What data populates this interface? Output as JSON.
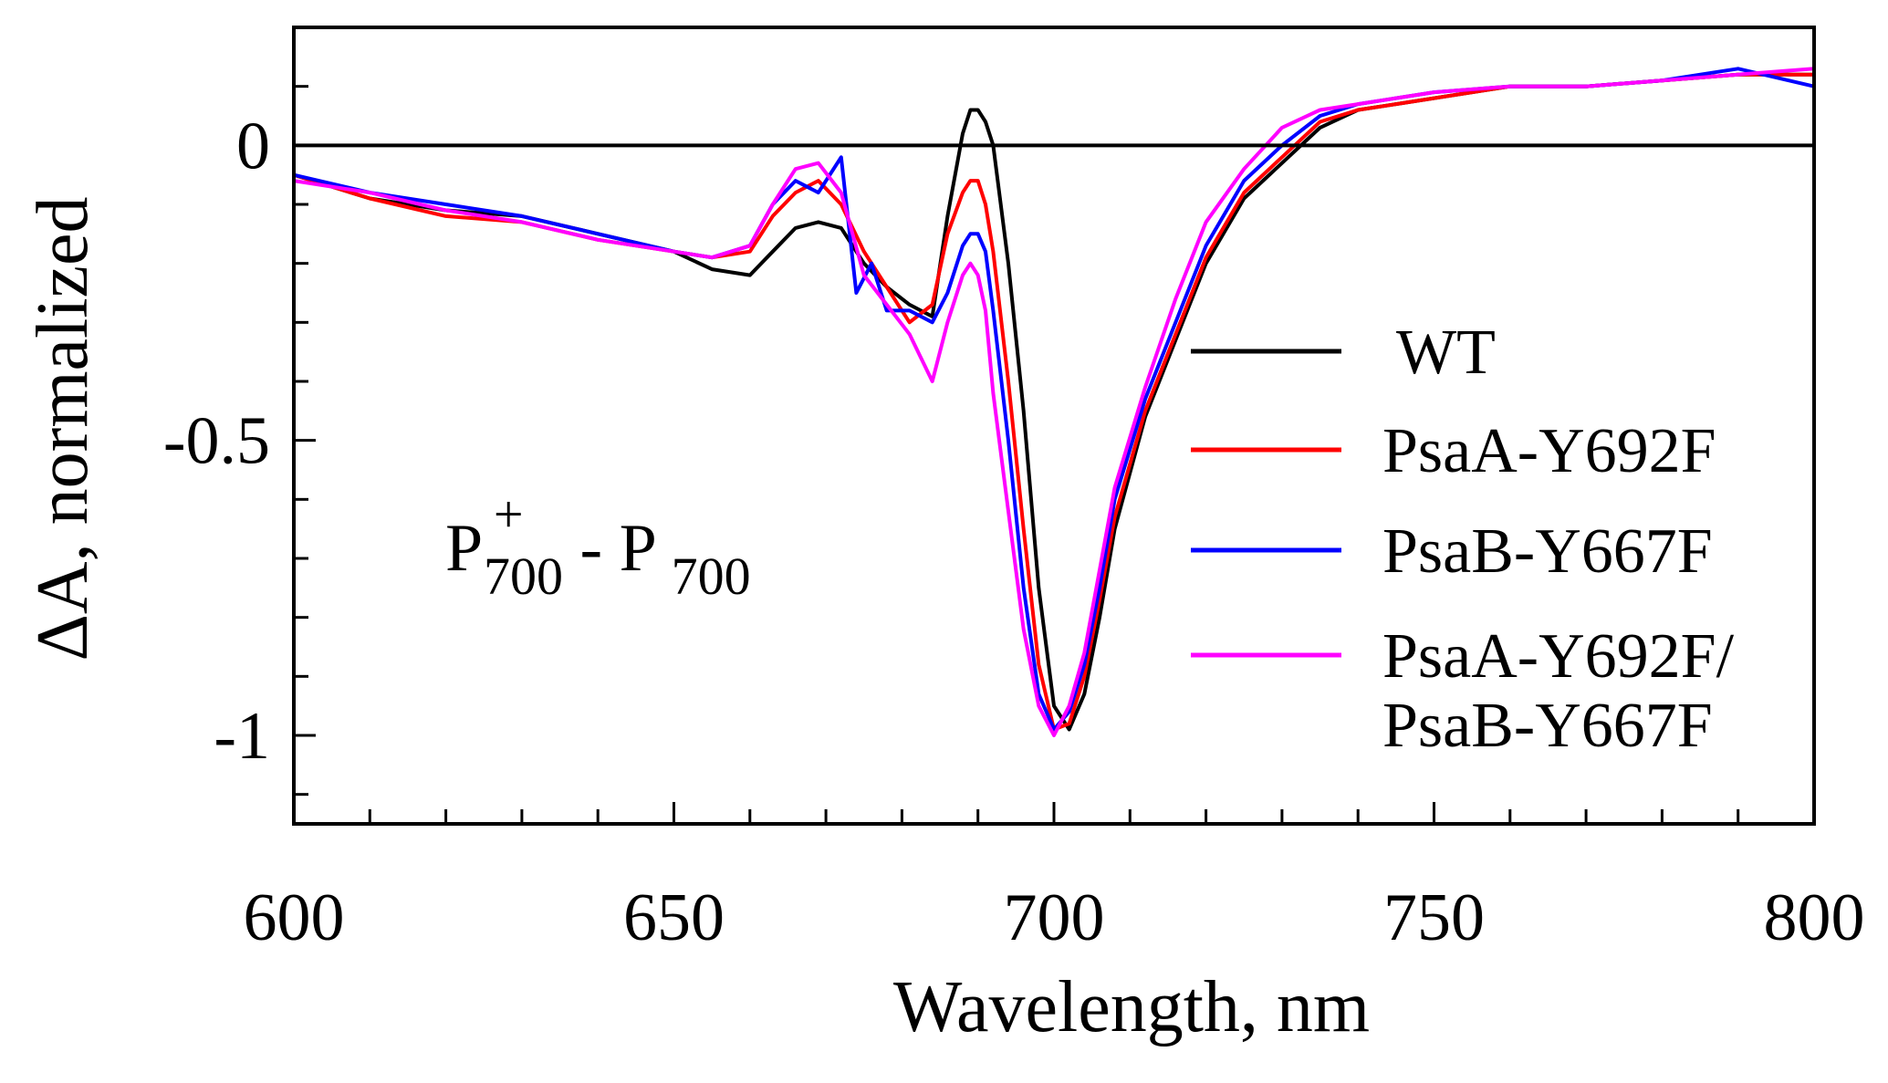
{
  "chart_data": {
    "type": "line",
    "title": "",
    "xlabel": "Wavelength, nm",
    "ylabel": "ΔA, normalized",
    "xlim": [
      600,
      800
    ],
    "ylim": [
      -1.15,
      0.2
    ],
    "x_ticks": [
      600,
      650,
      700,
      750,
      800
    ],
    "x_tick_labels": [
      "600",
      "650",
      "700",
      "750",
      "800"
    ],
    "y_ticks": [
      0,
      -0.5,
      -1
    ],
    "y_tick_labels": [
      "0",
      "-0.5",
      "-1"
    ],
    "zero_line": 0,
    "grid": false,
    "legend_position": "right",
    "annotation": {
      "base1": "P",
      "sup": "+",
      "sub1": "700",
      "dash": " - ",
      "base2": "P",
      "sub2": "700"
    },
    "legend_last_line2": "PsaB-Y667F",
    "series": [
      {
        "name": "WT",
        "color": "#000000",
        "points": [
          [
            600,
            -0.05
          ],
          [
            610,
            -0.09
          ],
          [
            620,
            -0.11
          ],
          [
            630,
            -0.12
          ],
          [
            640,
            -0.15
          ],
          [
            650,
            -0.18
          ],
          [
            655,
            -0.21
          ],
          [
            660,
            -0.22
          ],
          [
            663,
            -0.18
          ],
          [
            666,
            -0.14
          ],
          [
            669,
            -0.13
          ],
          [
            672,
            -0.14
          ],
          [
            675,
            -0.2
          ],
          [
            678,
            -0.24
          ],
          [
            681,
            -0.27
          ],
          [
            684,
            -0.29
          ],
          [
            686,
            -0.12
          ],
          [
            688,
            0.02
          ],
          [
            689,
            0.06
          ],
          [
            690,
            0.06
          ],
          [
            691,
            0.04
          ],
          [
            692,
            0
          ],
          [
            694,
            -0.2
          ],
          [
            696,
            -0.45
          ],
          [
            698,
            -0.75
          ],
          [
            700,
            -0.95
          ],
          [
            702,
            -0.99
          ],
          [
            704,
            -0.93
          ],
          [
            706,
            -0.8
          ],
          [
            708,
            -0.65
          ],
          [
            712,
            -0.46
          ],
          [
            716,
            -0.33
          ],
          [
            720,
            -0.2
          ],
          [
            725,
            -0.09
          ],
          [
            730,
            -0.03
          ],
          [
            735,
            0.03
          ],
          [
            740,
            0.06
          ],
          [
            745,
            0.07
          ],
          [
            750,
            0.08
          ],
          [
            760,
            0.1
          ],
          [
            770,
            0.1
          ],
          [
            780,
            0.11
          ],
          [
            790,
            0.12
          ],
          [
            800,
            0.12
          ]
        ]
      },
      {
        "name": "PsaA-Y692F",
        "color": "#ff0000",
        "points": [
          [
            600,
            -0.05
          ],
          [
            610,
            -0.09
          ],
          [
            620,
            -0.12
          ],
          [
            630,
            -0.13
          ],
          [
            640,
            -0.16
          ],
          [
            650,
            -0.18
          ],
          [
            655,
            -0.19
          ],
          [
            660,
            -0.18
          ],
          [
            663,
            -0.12
          ],
          [
            666,
            -0.08
          ],
          [
            669,
            -0.06
          ],
          [
            672,
            -0.1
          ],
          [
            675,
            -0.18
          ],
          [
            678,
            -0.24
          ],
          [
            681,
            -0.3
          ],
          [
            684,
            -0.27
          ],
          [
            686,
            -0.15
          ],
          [
            688,
            -0.08
          ],
          [
            689,
            -0.06
          ],
          [
            690,
            -0.06
          ],
          [
            691,
            -0.1
          ],
          [
            692,
            -0.18
          ],
          [
            694,
            -0.4
          ],
          [
            696,
            -0.65
          ],
          [
            698,
            -0.88
          ],
          [
            700,
            -0.99
          ],
          [
            702,
            -0.98
          ],
          [
            704,
            -0.9
          ],
          [
            706,
            -0.77
          ],
          [
            708,
            -0.63
          ],
          [
            712,
            -0.45
          ],
          [
            716,
            -0.32
          ],
          [
            720,
            -0.19
          ],
          [
            725,
            -0.08
          ],
          [
            730,
            -0.02
          ],
          [
            735,
            0.04
          ],
          [
            740,
            0.06
          ],
          [
            745,
            0.07
          ],
          [
            750,
            0.08
          ],
          [
            760,
            0.1
          ],
          [
            770,
            0.1
          ],
          [
            780,
            0.11
          ],
          [
            790,
            0.12
          ],
          [
            800,
            0.12
          ]
        ]
      },
      {
        "name": "PsaB-Y667F",
        "color": "#0000ff",
        "points": [
          [
            600,
            -0.05
          ],
          [
            610,
            -0.08
          ],
          [
            620,
            -0.1
          ],
          [
            630,
            -0.12
          ],
          [
            640,
            -0.15
          ],
          [
            650,
            -0.18
          ],
          [
            655,
            -0.19
          ],
          [
            660,
            -0.17
          ],
          [
            663,
            -0.1
          ],
          [
            666,
            -0.06
          ],
          [
            669,
            -0.08
          ],
          [
            672,
            -0.02
          ],
          [
            674,
            -0.25
          ],
          [
            676,
            -0.2
          ],
          [
            678,
            -0.28
          ],
          [
            681,
            -0.28
          ],
          [
            684,
            -0.3
          ],
          [
            686,
            -0.25
          ],
          [
            688,
            -0.17
          ],
          [
            689,
            -0.15
          ],
          [
            690,
            -0.15
          ],
          [
            691,
            -0.18
          ],
          [
            692,
            -0.28
          ],
          [
            694,
            -0.5
          ],
          [
            696,
            -0.75
          ],
          [
            698,
            -0.93
          ],
          [
            700,
            -0.99
          ],
          [
            702,
            -0.96
          ],
          [
            704,
            -0.88
          ],
          [
            706,
            -0.75
          ],
          [
            708,
            -0.6
          ],
          [
            712,
            -0.43
          ],
          [
            716,
            -0.3
          ],
          [
            720,
            -0.17
          ],
          [
            725,
            -0.06
          ],
          [
            730,
            0
          ],
          [
            735,
            0.05
          ],
          [
            740,
            0.07
          ],
          [
            745,
            0.08
          ],
          [
            750,
            0.09
          ],
          [
            760,
            0.1
          ],
          [
            770,
            0.1
          ],
          [
            780,
            0.11
          ],
          [
            790,
            0.13
          ],
          [
            800,
            0.1
          ]
        ]
      },
      {
        "name": "PsaA-Y692F/",
        "color": "#ff00ff",
        "points": [
          [
            600,
            -0.06
          ],
          [
            610,
            -0.08
          ],
          [
            620,
            -0.11
          ],
          [
            630,
            -0.13
          ],
          [
            640,
            -0.16
          ],
          [
            650,
            -0.18
          ],
          [
            655,
            -0.19
          ],
          [
            660,
            -0.17
          ],
          [
            663,
            -0.1
          ],
          [
            666,
            -0.04
          ],
          [
            669,
            -0.03
          ],
          [
            672,
            -0.08
          ],
          [
            675,
            -0.22
          ],
          [
            678,
            -0.27
          ],
          [
            681,
            -0.32
          ],
          [
            684,
            -0.4
          ],
          [
            686,
            -0.3
          ],
          [
            688,
            -0.22
          ],
          [
            689,
            -0.2
          ],
          [
            690,
            -0.22
          ],
          [
            691,
            -0.28
          ],
          [
            692,
            -0.42
          ],
          [
            694,
            -0.62
          ],
          [
            696,
            -0.82
          ],
          [
            698,
            -0.95
          ],
          [
            700,
            -1
          ],
          [
            702,
            -0.95
          ],
          [
            704,
            -0.86
          ],
          [
            706,
            -0.72
          ],
          [
            708,
            -0.58
          ],
          [
            712,
            -0.41
          ],
          [
            716,
            -0.26
          ],
          [
            720,
            -0.13
          ],
          [
            725,
            -0.04
          ],
          [
            730,
            0.03
          ],
          [
            735,
            0.06
          ],
          [
            740,
            0.07
          ],
          [
            745,
            0.08
          ],
          [
            750,
            0.09
          ],
          [
            760,
            0.1
          ],
          [
            770,
            0.1
          ],
          [
            780,
            0.11
          ],
          [
            790,
            0.12
          ],
          [
            800,
            0.13
          ]
        ]
      }
    ]
  }
}
